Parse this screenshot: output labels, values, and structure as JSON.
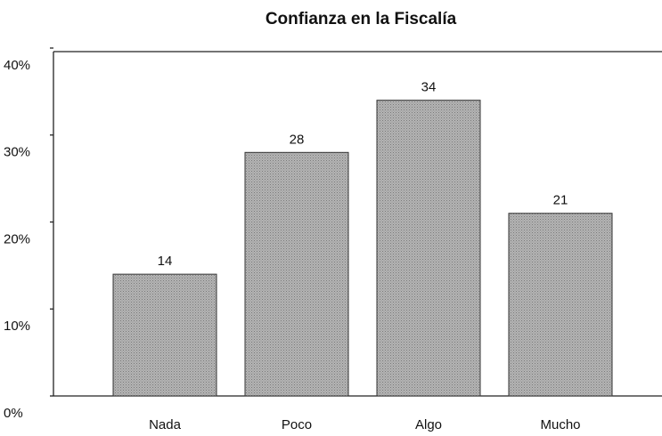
{
  "chart_data": {
    "type": "bar",
    "title": "Confianza en la Fiscalía",
    "categories": [
      "Nada",
      "Poco",
      "Algo",
      "Mucho"
    ],
    "values": [
      14,
      28,
      34,
      21
    ],
    "color": "#a9a9a9",
    "ylim": [
      0,
      40
    ],
    "yticks": [
      {
        "value": 0,
        "label": "0%"
      },
      {
        "value": 10,
        "label": "10%"
      },
      {
        "value": 20,
        "label": "20%"
      },
      {
        "value": 30,
        "label": "30%"
      },
      {
        "value": 40,
        "label": "40%"
      }
    ],
    "grid": false
  }
}
